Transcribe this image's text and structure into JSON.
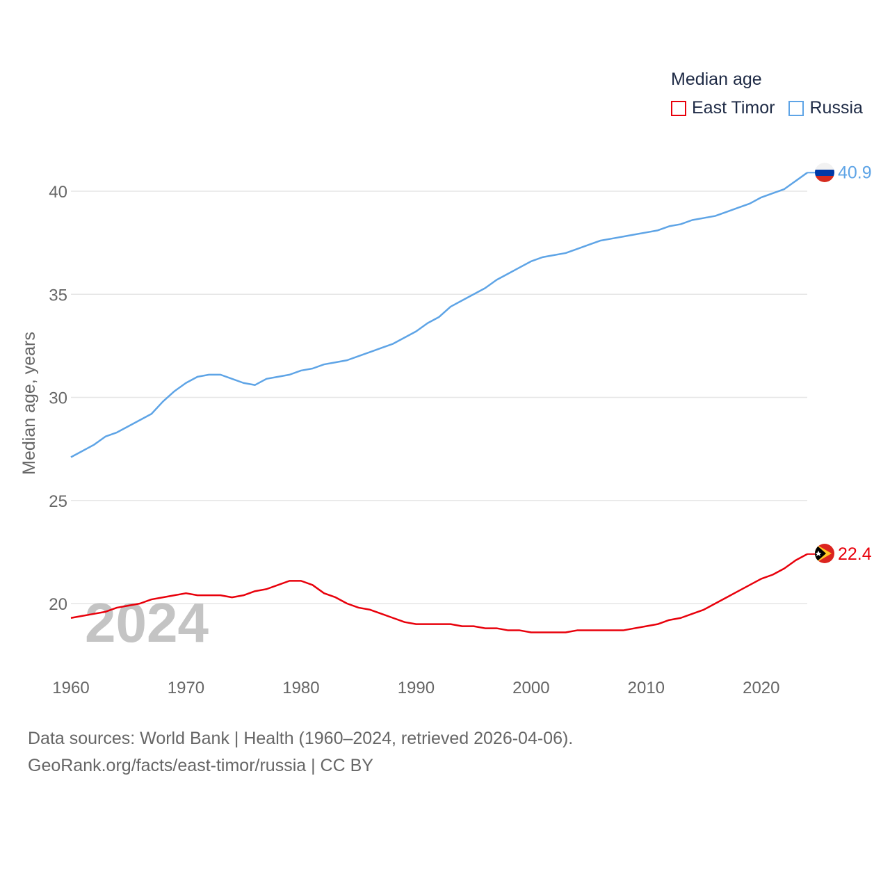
{
  "chart_data": {
    "type": "line",
    "ylabel": "Median age, years",
    "xlim": [
      1960,
      2024
    ],
    "ylim": [
      17,
      42
    ],
    "yticks": [
      20,
      25,
      30,
      35,
      40
    ],
    "xticks": [
      1960,
      1970,
      1980,
      1990,
      2000,
      2010,
      2020
    ],
    "year_watermark": "2024",
    "legend": {
      "title": "Median age",
      "position": "top-right"
    },
    "x": [
      1960,
      1961,
      1962,
      1963,
      1964,
      1965,
      1966,
      1967,
      1968,
      1969,
      1970,
      1971,
      1972,
      1973,
      1974,
      1975,
      1976,
      1977,
      1978,
      1979,
      1980,
      1981,
      1982,
      1983,
      1984,
      1985,
      1986,
      1987,
      1988,
      1989,
      1990,
      1991,
      1992,
      1993,
      1994,
      1995,
      1996,
      1997,
      1998,
      1999,
      2000,
      2001,
      2002,
      2003,
      2004,
      2005,
      2006,
      2007,
      2008,
      2009,
      2010,
      2011,
      2012,
      2013,
      2014,
      2015,
      2016,
      2017,
      2018,
      2019,
      2020,
      2021,
      2022,
      2023,
      2024
    ],
    "series": [
      {
        "name": "East Timor",
        "color": "#e8000b",
        "end_label": "22.4",
        "flag": "east-timor-flag",
        "values": [
          19.3,
          19.4,
          19.5,
          19.6,
          19.8,
          19.9,
          20.0,
          20.2,
          20.3,
          20.4,
          20.5,
          20.4,
          20.4,
          20.4,
          20.3,
          20.4,
          20.6,
          20.7,
          20.9,
          21.1,
          21.1,
          20.9,
          20.5,
          20.3,
          20.0,
          19.8,
          19.7,
          19.5,
          19.3,
          19.1,
          19.0,
          19.0,
          19.0,
          19.0,
          18.9,
          18.9,
          18.8,
          18.8,
          18.7,
          18.7,
          18.6,
          18.6,
          18.6,
          18.6,
          18.7,
          18.7,
          18.7,
          18.7,
          18.7,
          18.8,
          18.9,
          19.0,
          19.2,
          19.3,
          19.5,
          19.7,
          20.0,
          20.3,
          20.6,
          20.9,
          21.2,
          21.4,
          21.7,
          22.1,
          22.4
        ]
      },
      {
        "name": "Russia",
        "color": "#5ea4e6",
        "end_label": "40.9",
        "flag": "russia-flag",
        "values": [
          27.1,
          27.4,
          27.7,
          28.1,
          28.3,
          28.6,
          28.9,
          29.2,
          29.8,
          30.3,
          30.7,
          31.0,
          31.1,
          31.1,
          30.9,
          30.7,
          30.6,
          30.9,
          31.0,
          31.1,
          31.3,
          31.4,
          31.6,
          31.7,
          31.8,
          32.0,
          32.2,
          32.4,
          32.6,
          32.9,
          33.2,
          33.6,
          33.9,
          34.4,
          34.7,
          35.0,
          35.3,
          35.7,
          36.0,
          36.3,
          36.6,
          36.8,
          36.9,
          37.0,
          37.2,
          37.4,
          37.6,
          37.7,
          37.8,
          37.9,
          38.0,
          38.1,
          38.3,
          38.4,
          38.6,
          38.7,
          38.8,
          39.0,
          39.2,
          39.4,
          39.7,
          39.9,
          40.1,
          40.5,
          40.9
        ]
      }
    ]
  },
  "footer": {
    "line1": "Data sources: World Bank | Health (1960–2024, retrieved 2026-04-06).",
    "line2": "GeoRank.org/facts/east-timor/russia | CC BY"
  }
}
